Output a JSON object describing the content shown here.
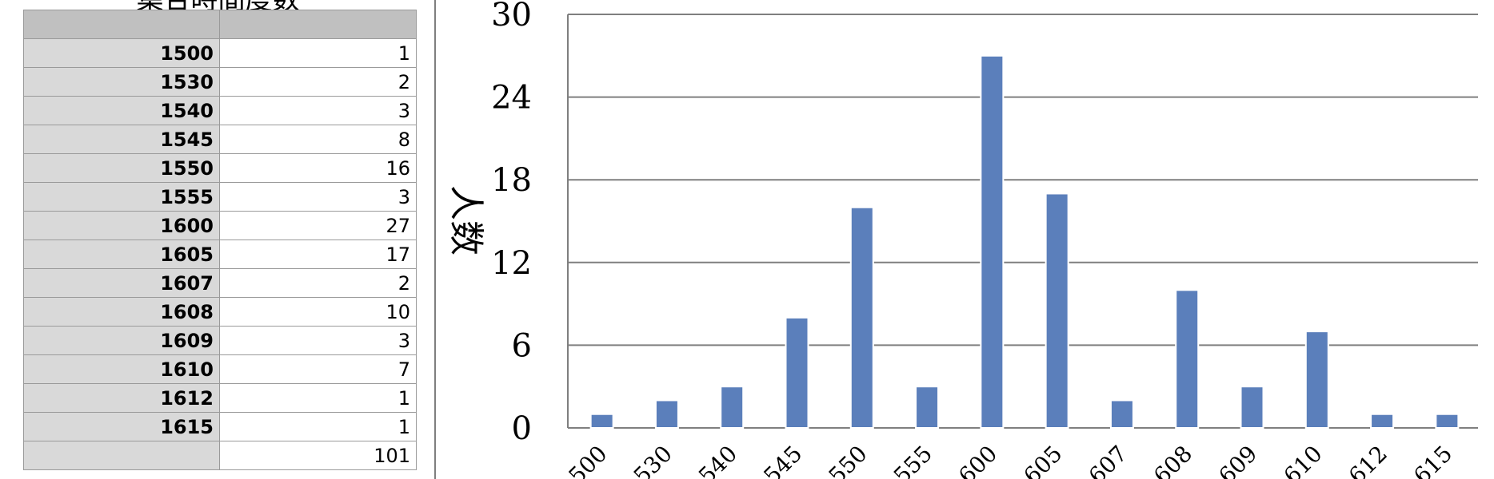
{
  "table": {
    "title": "集合時間度数",
    "rows": [
      {
        "key": "1500",
        "value": "1"
      },
      {
        "key": "1530",
        "value": "2"
      },
      {
        "key": "1540",
        "value": "3"
      },
      {
        "key": "1545",
        "value": "8"
      },
      {
        "key": "1550",
        "value": "16"
      },
      {
        "key": "1555",
        "value": "3"
      },
      {
        "key": "1600",
        "value": "27"
      },
      {
        "key": "1605",
        "value": "17"
      },
      {
        "key": "1607",
        "value": "2"
      },
      {
        "key": "1608",
        "value": "10"
      },
      {
        "key": "1609",
        "value": "3"
      },
      {
        "key": "1610",
        "value": "7"
      },
      {
        "key": "1612",
        "value": "1"
      },
      {
        "key": "1615",
        "value": "1"
      }
    ],
    "total": "101"
  },
  "chart_data": {
    "type": "bar",
    "categories": [
      "1500",
      "1530",
      "1540",
      "1545",
      "1550",
      "1555",
      "1600",
      "1605",
      "1607",
      "1608",
      "1609",
      "1610",
      "1612",
      "1615"
    ],
    "tick_labels": [
      "500",
      "530",
      "540",
      "545",
      "550",
      "555",
      "600",
      "605",
      "607",
      "608",
      "609",
      "610",
      "612",
      "615"
    ],
    "values": [
      1,
      2,
      3,
      8,
      16,
      3,
      27,
      17,
      2,
      10,
      3,
      7,
      1,
      1
    ],
    "ylabel": "人数",
    "ylim": [
      0,
      30
    ],
    "yticks": [
      0,
      6,
      12,
      18,
      24,
      30
    ],
    "grid": true,
    "legend": "none",
    "bar_color": "#5b7fbb"
  }
}
